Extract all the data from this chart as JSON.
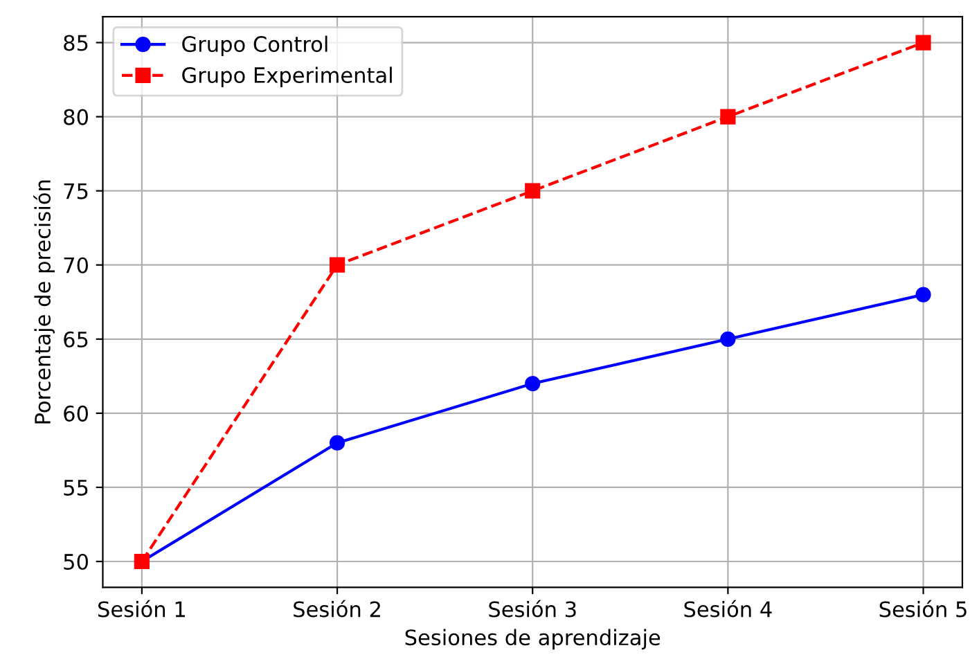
{
  "chart_data": {
    "type": "line",
    "xlabel": "Sesiones de aprendizaje",
    "ylabel": "Porcentaje de precisión",
    "categories": [
      "Sesión 1",
      "Sesión 2",
      "Sesión 3",
      "Sesión 4",
      "Sesión 5"
    ],
    "series": [
      {
        "name": "Grupo Control",
        "color": "#0000ff",
        "values": [
          50,
          58,
          62,
          65,
          68
        ],
        "marker": "circle",
        "line_style": "solid"
      },
      {
        "name": "Grupo Experimental",
        "color": "#ff0000",
        "values": [
          50,
          70,
          75,
          80,
          85
        ],
        "marker": "square",
        "line_style": "dashed"
      }
    ],
    "ylim": [
      48.25,
      86.75
    ],
    "yticks": [
      50,
      55,
      60,
      65,
      70,
      75,
      80,
      85
    ],
    "grid": true,
    "legend": "top left"
  }
}
